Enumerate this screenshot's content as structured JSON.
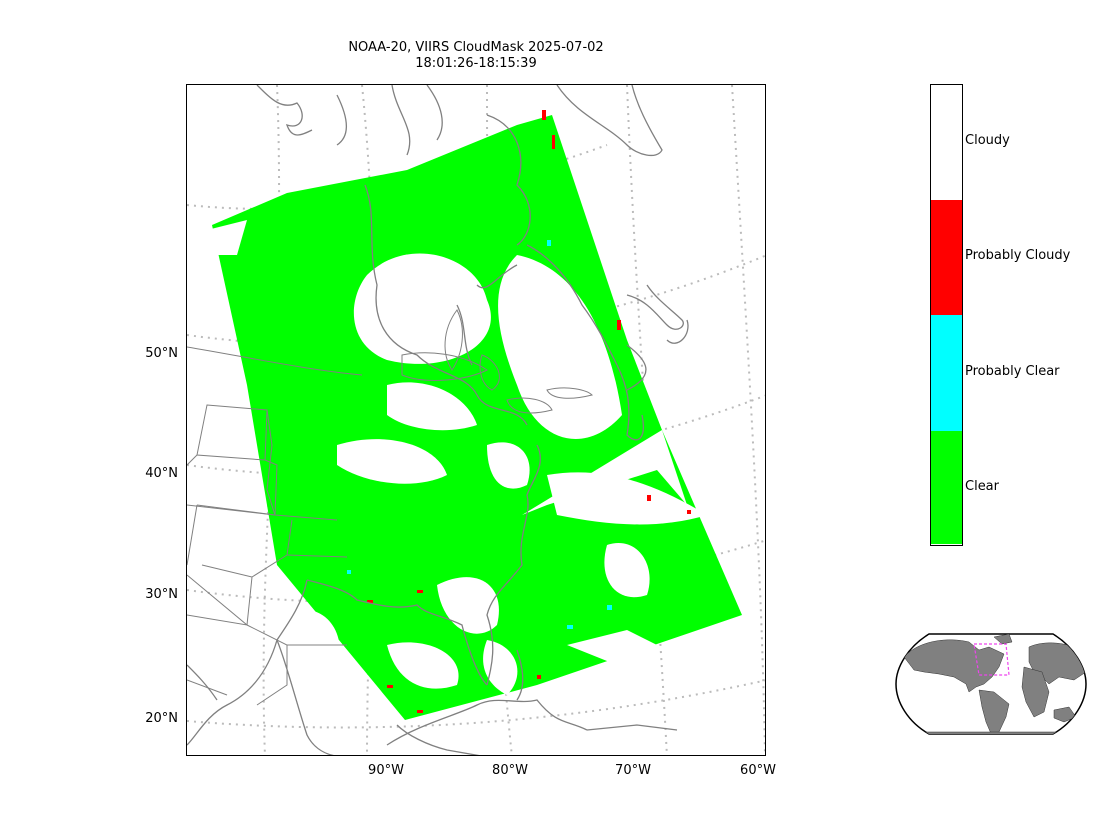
{
  "title": {
    "line1": "NOAA-20, VIIRS CloudMask 2025-07-02",
    "line2": "18:01:26-18:15:39"
  },
  "axes": {
    "lat_labels": [
      "50°N",
      "40°N",
      "30°N",
      "20°N"
    ],
    "lon_labels": [
      "90°W",
      "80°W",
      "70°W",
      "60°W"
    ]
  },
  "legend": {
    "items": [
      {
        "label": "Cloudy",
        "color": "#ffffff"
      },
      {
        "label": "Probably Cloudy",
        "color": "#ff0000"
      },
      {
        "label": "Probably Clear",
        "color": "#00ffff"
      },
      {
        "label": "Clear",
        "color": "#00ff00"
      }
    ]
  },
  "colors": {
    "coast": "#808080",
    "grid": "#bbbbbb",
    "swath_clear": "#00ff00",
    "inset_region": "#ee44ee",
    "inset_land": "#808080"
  }
}
